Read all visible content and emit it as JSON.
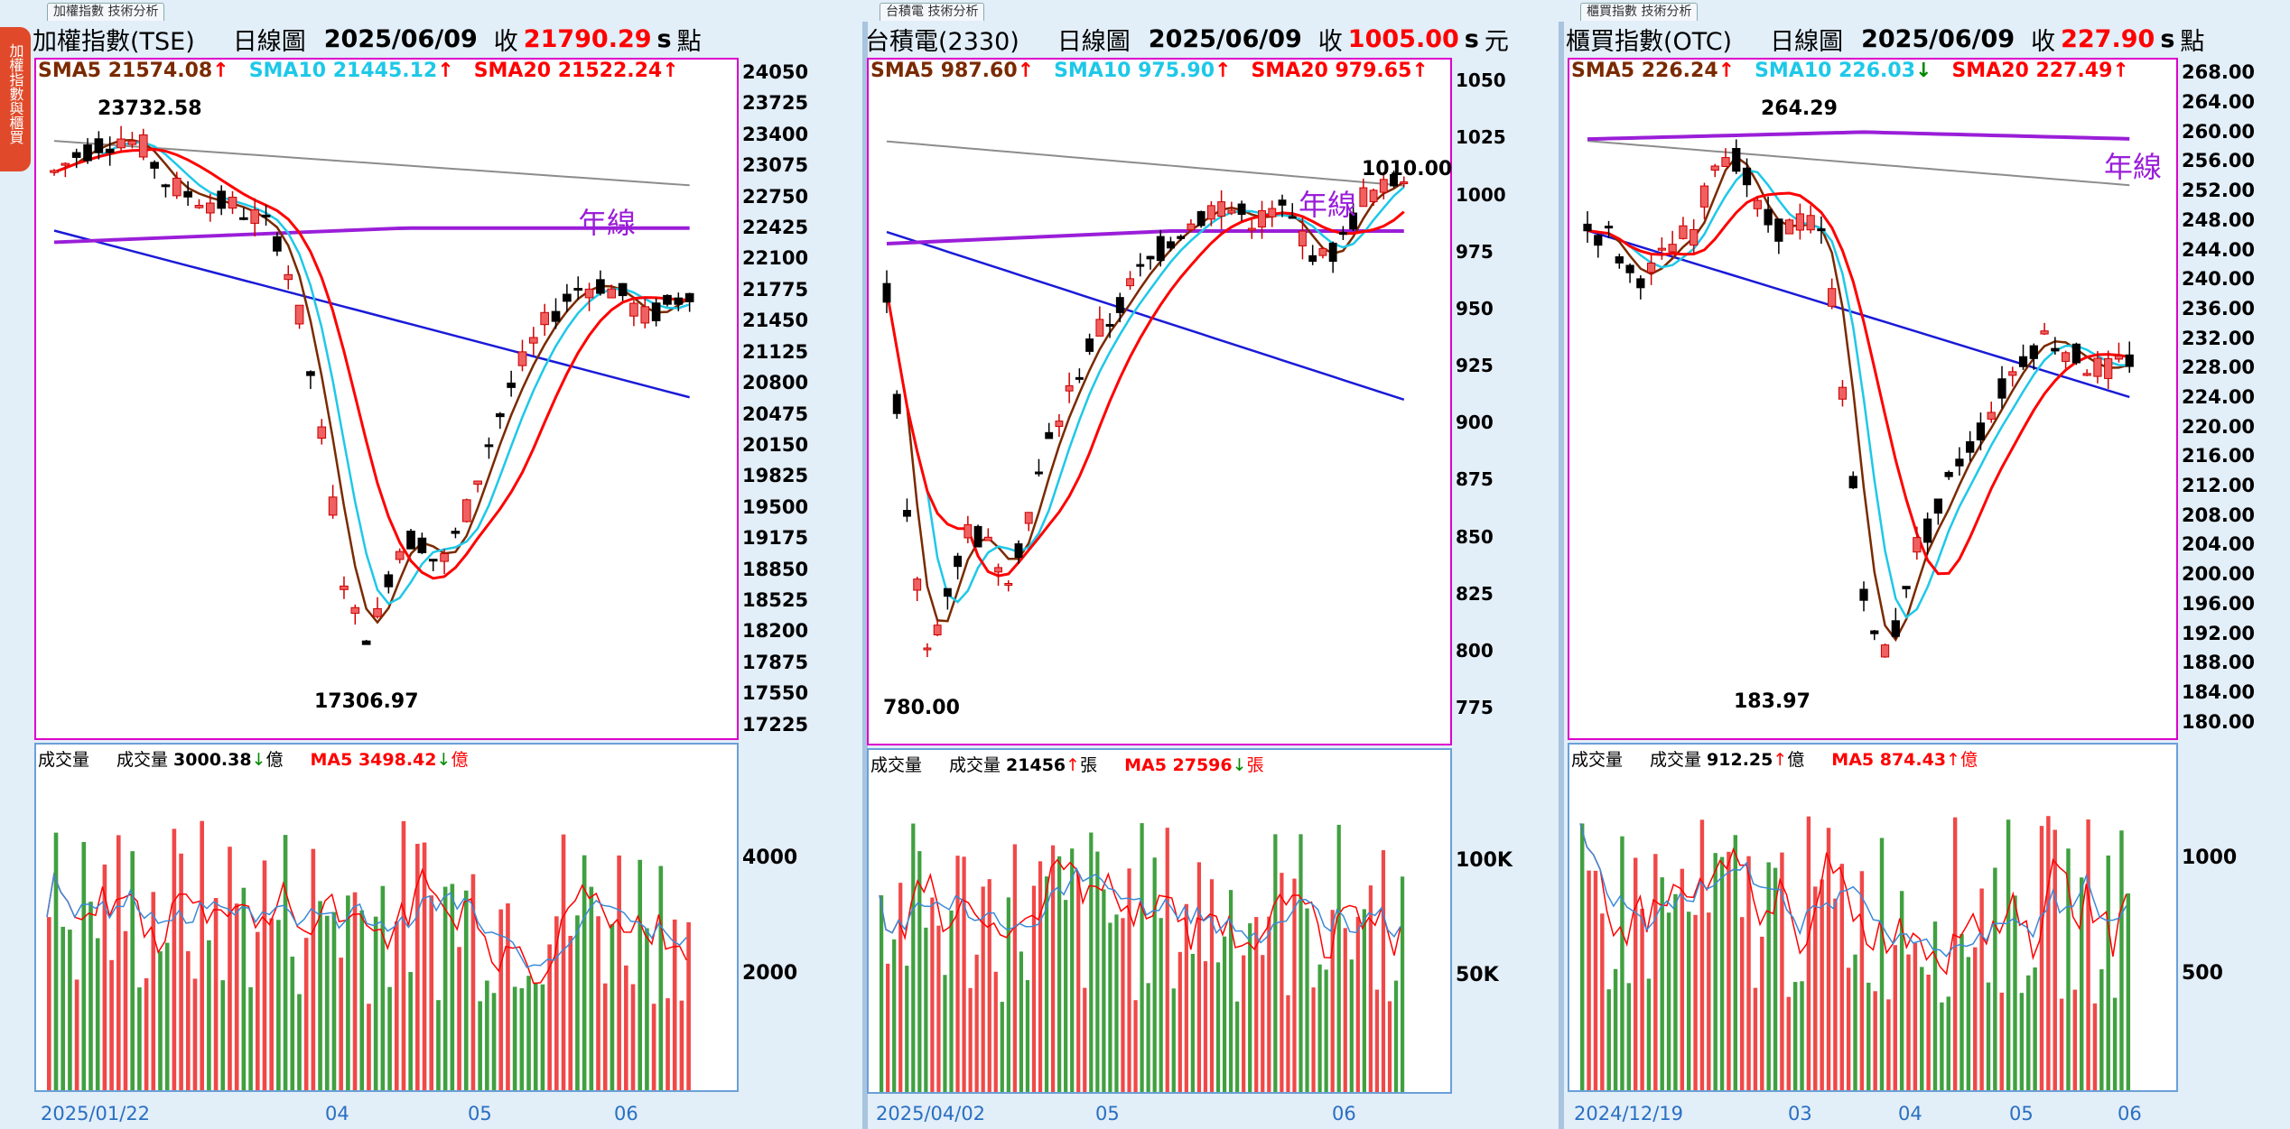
{
  "side_tab": "加權指數與櫃買",
  "panels": [
    {
      "tab": "加權指數 技術分析",
      "title": "加權指數(TSE)",
      "period": "日線圖",
      "date": "2025/06/09",
      "close_label": "收",
      "close": "21790.29",
      "close_suffix": "s",
      "unit": "點",
      "sma5": "SMA5 21574.08",
      "sma10": "SMA10 21445.12",
      "sma20": "SMA20 21522.24",
      "arrows": [
        "↑",
        "↑",
        "↑"
      ],
      "year_line": "年線",
      "high": "23732.58",
      "low": "17306.97",
      "y_ticks": [
        "24050",
        "23725",
        "23400",
        "23075",
        "22750",
        "22425",
        "22100",
        "21775",
        "21450",
        "21125",
        "20800",
        "20475",
        "20150",
        "19825",
        "19500",
        "19175",
        "18850",
        "18525",
        "18200",
        "17875",
        "17550",
        "17225"
      ],
      "vol_title": "成交量",
      "vol_label": "成交量",
      "vol_value": "3000.38",
      "vol_arrow": "↓",
      "vol_unit": "億",
      "vol_ma": "MA5 3498.42",
      "vol_ma_arrow": "↓",
      "vol_ma_unit": "億",
      "vol_ticks": [
        "4000",
        "2000"
      ],
      "x_labels": [
        "2025/01/22",
        "04",
        "05",
        "06"
      ]
    },
    {
      "tab": "台積電 技術分析",
      "title": "台積電(2330)",
      "period": "日線圖",
      "date": "2025/06/09",
      "close_label": "收",
      "close": "1005.00",
      "close_suffix": "s",
      "unit": "元",
      "sma5": "SMA5 987.60",
      "sma10": "SMA10 975.90",
      "sma20": "SMA20 979.65",
      "arrows": [
        "↑",
        "↑",
        "↑"
      ],
      "year_line": "年線",
      "high": "1010.00",
      "low": "780.00",
      "y_ticks": [
        "1050",
        "1025",
        "1000",
        "975",
        "950",
        "925",
        "900",
        "875",
        "850",
        "825",
        "800",
        "775"
      ],
      "vol_title": "成交量",
      "vol_label": "成交量",
      "vol_value": "21456",
      "vol_arrow": "↑",
      "vol_unit": "張",
      "vol_ma": "MA5 27596",
      "vol_ma_arrow": "↓",
      "vol_ma_unit": "張",
      "vol_ticks": [
        "100K",
        "50K"
      ],
      "x_labels": [
        "2025/04/02",
        "05",
        "06"
      ]
    },
    {
      "tab": "櫃買指數 技術分析",
      "title": "櫃買指數(OTC)",
      "period": "日線圖",
      "date": "2025/06/09",
      "close_label": "收",
      "close": "227.90",
      "close_suffix": "s",
      "unit": "點",
      "sma5": "SMA5 226.24",
      "sma10": "SMA10 226.03",
      "sma20": "SMA20 227.49",
      "arrows": [
        "↑",
        "↓",
        "↑"
      ],
      "year_line": "年線",
      "high": "264.29",
      "low": "183.97",
      "y_ticks": [
        "268.00",
        "264.00",
        "260.00",
        "256.00",
        "252.00",
        "248.00",
        "244.00",
        "240.00",
        "236.00",
        "232.00",
        "228.00",
        "224.00",
        "220.00",
        "216.00",
        "212.00",
        "208.00",
        "204.00",
        "200.00",
        "196.00",
        "192.00",
        "188.00",
        "184.00",
        "180.00"
      ],
      "vol_title": "成交量",
      "vol_label": "成交量",
      "vol_value": "912.25",
      "vol_arrow": "↑",
      "vol_unit": "億",
      "vol_ma": "MA5 874.43",
      "vol_ma_arrow": "↑",
      "vol_ma_unit": "億",
      "vol_ticks": [
        "1000",
        "500"
      ],
      "x_labels": [
        "2024/12/19",
        "03",
        "04",
        "05",
        "06"
      ]
    }
  ],
  "colors": {
    "sma5": "#7a2a00",
    "sma10": "#1ec8e8",
    "sma20": "#ff0000",
    "sma60": "#1a1ad8",
    "sma120": "#8c8c8c",
    "year": "#9a1ed8",
    "up": "#f06060",
    "down": "#000000",
    "vol_up": "#f04848",
    "vol_down": "#40a040"
  }
}
